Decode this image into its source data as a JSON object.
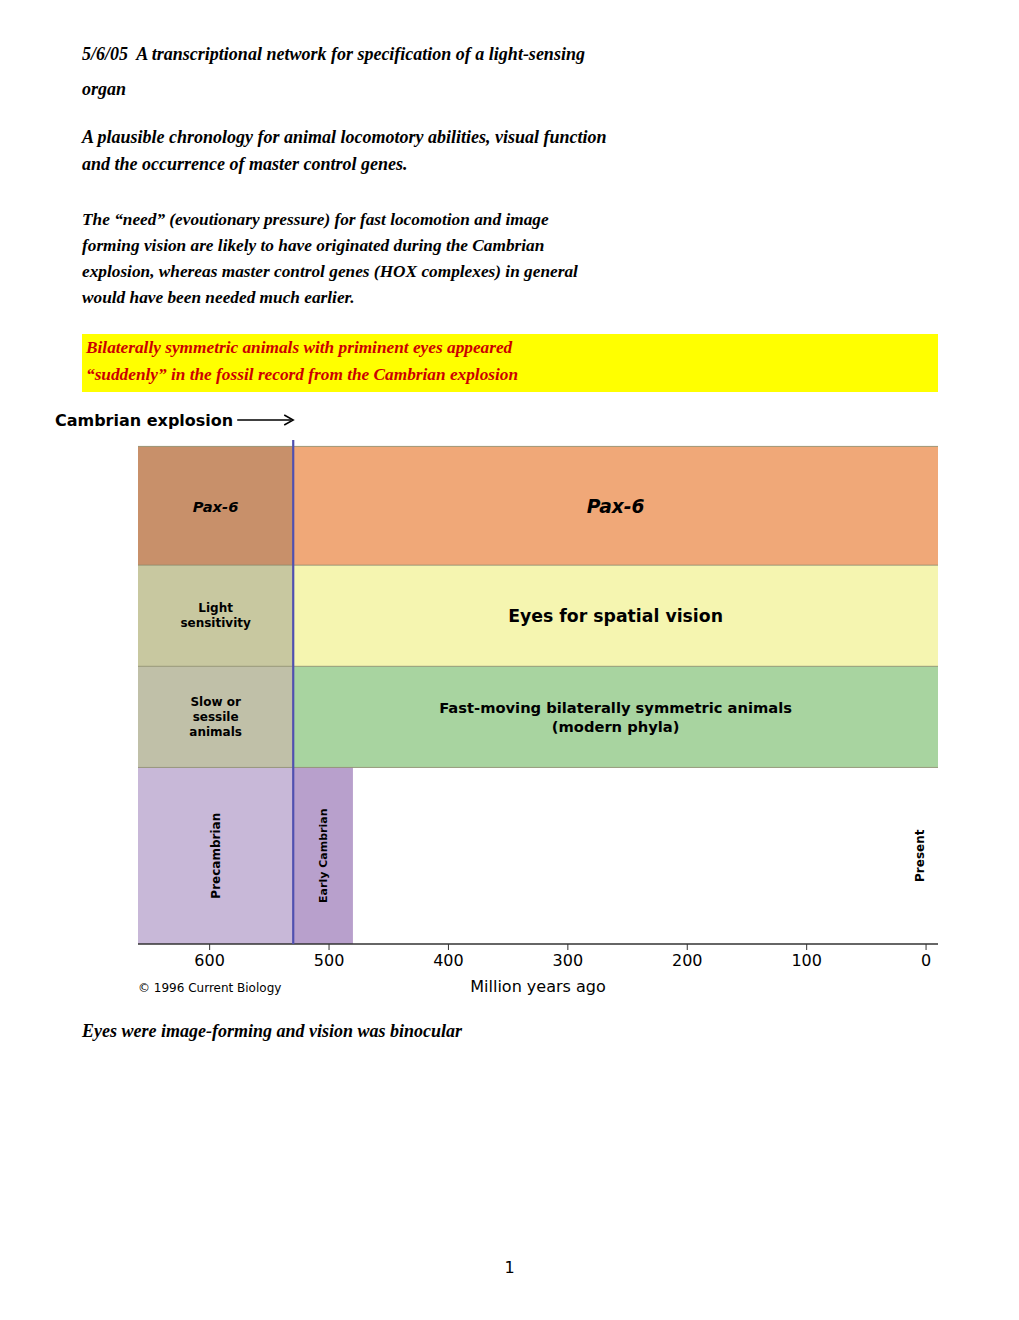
{
  "chart_data": {
    "type": "timeline",
    "title": "5/6/05  A transcriptional network for specification of a light-sensing\norgan",
    "subtitle": "A plausible chronology for animal locomotory abilities, visual function\nand the occurrence of master control genes.",
    "text": "The “need” (evoutionary pressure) for fast locomotion and image\nforming vision are likely to have originated during the Cambrian\nexplosion, whereas master control genes (HOX complexes) in general\nwould have been needed much earlier.",
    "highlight": {
      "text": "Bilaterally symmetric animals with priminent eyes appeared\n“suddenly” in the fossil record from the Cambrian explosion",
      "color": "#cc0000",
      "background": "#ffff00"
    },
    "footer": "Eyes were image-forming and vision was binocular",
    "page_number": "1",
    "copyright": "© 1996 Current Biology",
    "xlabel": "Million years ago",
    "xlim": [
      660,
      -10
    ],
    "xticks": [
      0,
      100,
      200,
      300,
      400,
      500,
      600
    ],
    "background": "#ffffff",
    "text_color": "#000000",
    "cambrian": {
      "label": "Cambrian explosion",
      "x": 530,
      "color": "#5050b0"
    },
    "rows": [
      {
        "left_label": "Pax-6",
        "right_label": "Pax-6",
        "left_color": "#c8906a",
        "right_color": "#f0a878"
      },
      {
        "left_label": "Light\nsensitivity",
        "right_label": "Eyes for spatial vision",
        "left_color": "#c8c8a0",
        "right_color": "#f5f5b0"
      },
      {
        "left_label": "Slow or\nsessile\nanimals",
        "right_label": "Fast-moving bilaterally symmetric animals\n(modern phyla)",
        "left_color": "#c0c0a8",
        "right_color": "#a8d4a0"
      }
    ],
    "periods": [
      {
        "label": "Precambrian",
        "start": 660,
        "end": 530,
        "color": "#c8b8d8"
      },
      {
        "label": "Early Cambrian",
        "start": 530,
        "end": 480,
        "color": "#b8a0cc"
      }
    ],
    "present_label": "Present"
  }
}
